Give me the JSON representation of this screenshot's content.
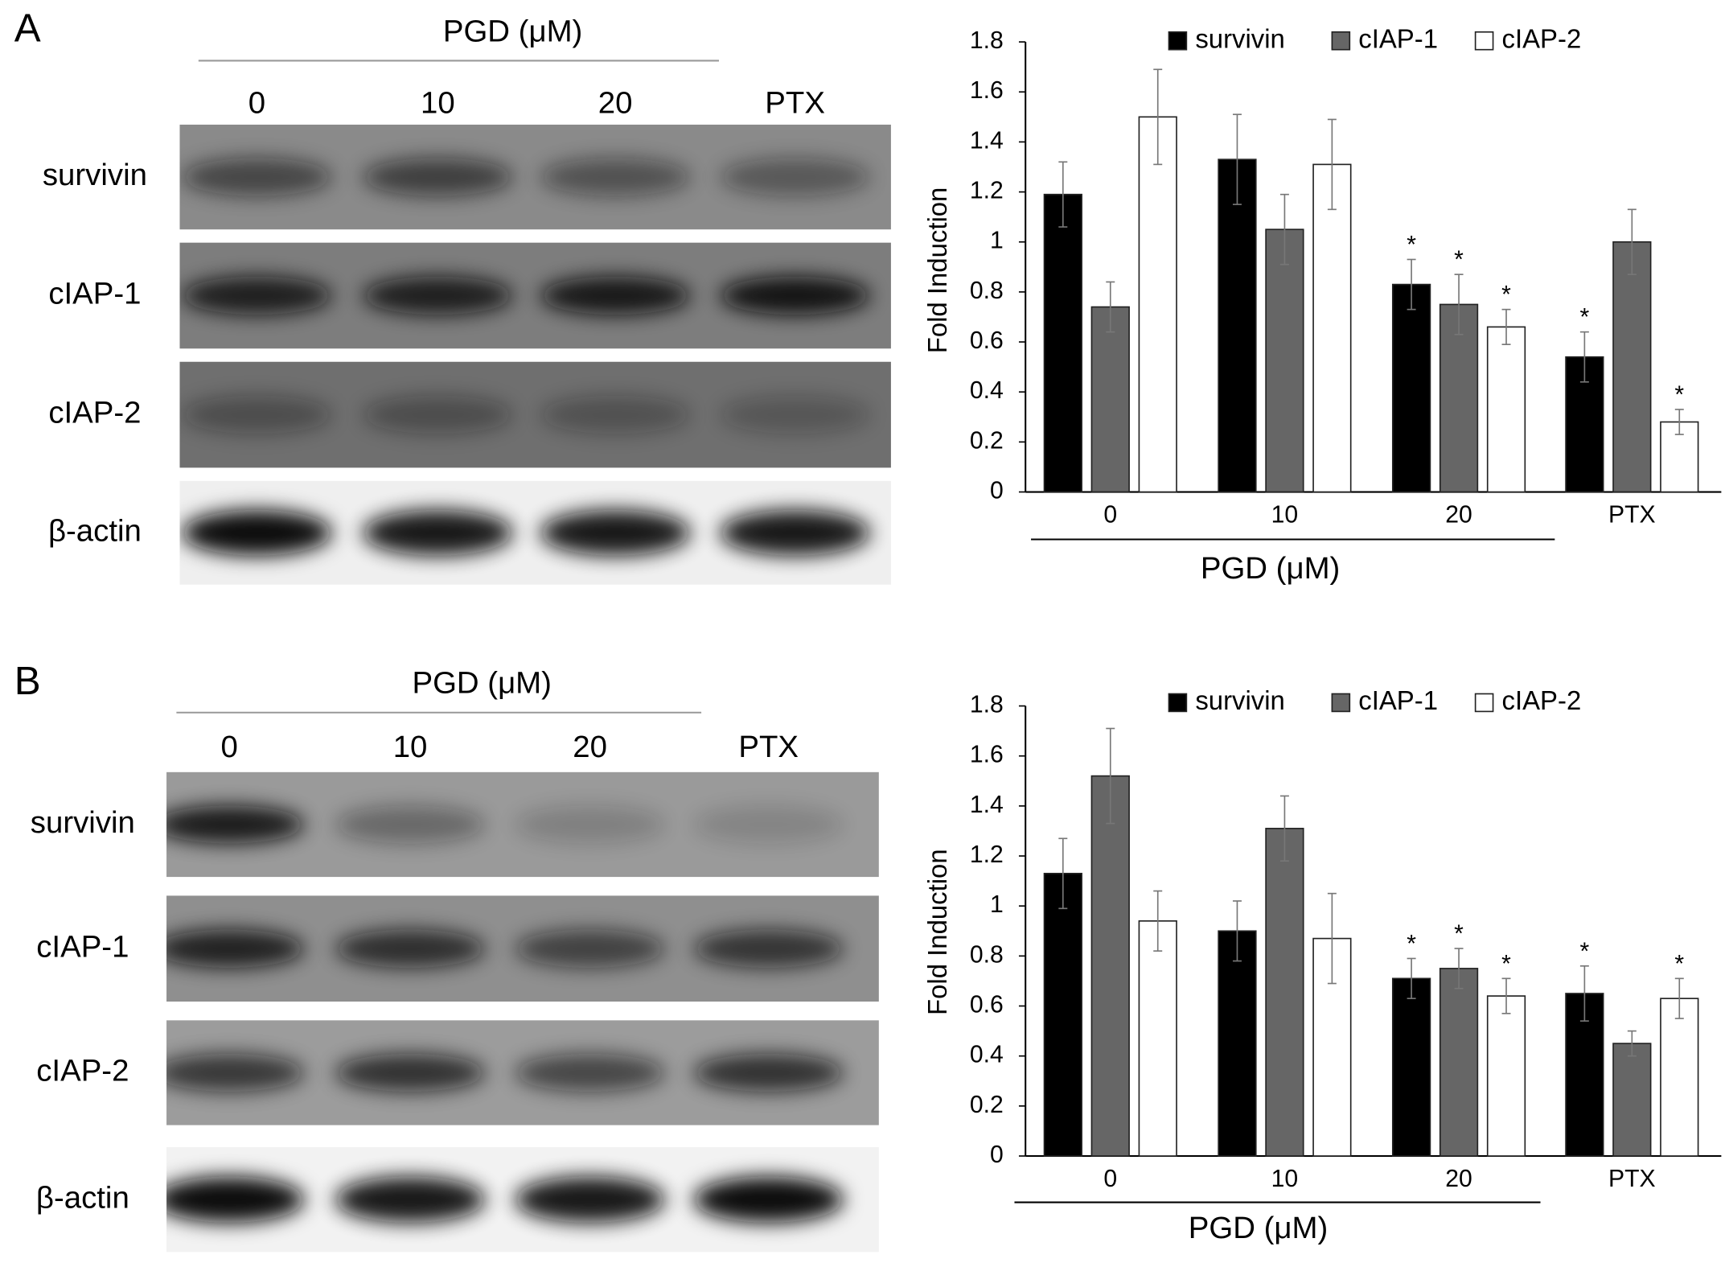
{
  "panel_labels": [
    "A",
    "B"
  ],
  "blots": [
    {
      "group_label": "PGD (μM)",
      "lanes": [
        "0",
        "10",
        "20",
        "PTX"
      ],
      "rows": [
        "survivin",
        "cIAP-1",
        "cIAP-2",
        "β-actin"
      ]
    },
    {
      "group_label": "PGD (μM)",
      "lanes": [
        "0",
        "10",
        "20",
        "PTX"
      ],
      "rows": [
        "survivin",
        "cIAP-1",
        "cIAP-2",
        "β-actin"
      ]
    }
  ],
  "chart_data": [
    {
      "type": "bar",
      "ylabel": "Fold Induction",
      "xlabel": "PGD (μM)",
      "significance_marker": "*",
      "categories": [
        "0",
        "10",
        "20",
        "PTX"
      ],
      "series": [
        {
          "name": "survivin",
          "color": "#000000",
          "values": [
            1.19,
            1.33,
            0.83,
            0.54
          ],
          "errors": [
            0.13,
            0.18,
            0.1,
            0.1
          ],
          "significant": [
            false,
            false,
            true,
            true
          ]
        },
        {
          "name": "cIAP-1",
          "color": "#666666",
          "values": [
            0.74,
            1.05,
            0.75,
            1.0
          ],
          "errors": [
            0.1,
            0.14,
            0.12,
            0.13
          ],
          "significant": [
            false,
            false,
            true,
            false
          ]
        },
        {
          "name": "cIAP-2",
          "color": "#ffffff",
          "values": [
            1.5,
            1.31,
            0.66,
            0.28
          ],
          "errors": [
            0.19,
            0.18,
            0.07,
            0.05
          ],
          "significant": [
            false,
            false,
            true,
            true
          ]
        }
      ],
      "ylim": [
        0,
        1.8
      ],
      "yticks": [
        0,
        0.2,
        0.4,
        0.6,
        0.8,
        1,
        1.2,
        1.4,
        1.6,
        1.8
      ],
      "legend": "top"
    },
    {
      "type": "bar",
      "ylabel": "Fold Induction",
      "xlabel": "PGD (μM)",
      "significance_marker": "*",
      "categories": [
        "0",
        "10",
        "20",
        "PTX"
      ],
      "series": [
        {
          "name": "survivin",
          "color": "#000000",
          "values": [
            1.13,
            0.9,
            0.71,
            0.65
          ],
          "errors": [
            0.14,
            0.12,
            0.08,
            0.11
          ],
          "significant": [
            false,
            false,
            true,
            true
          ]
        },
        {
          "name": "cIAP-1",
          "color": "#666666",
          "values": [
            1.52,
            1.31,
            0.75,
            0.45
          ],
          "errors": [
            0.19,
            0.13,
            0.08,
            0.05
          ],
          "significant": [
            false,
            false,
            true,
            false
          ]
        },
        {
          "name": "cIAP-2",
          "color": "#ffffff",
          "values": [
            0.94,
            0.87,
            0.64,
            0.63
          ],
          "errors": [
            0.12,
            0.18,
            0.07,
            0.08
          ],
          "significant": [
            false,
            false,
            true,
            true
          ]
        }
      ],
      "ylim": [
        0,
        1.8
      ],
      "yticks": [
        0,
        0.2,
        0.4,
        0.6,
        0.8,
        1,
        1.2,
        1.4,
        1.6,
        1.8
      ],
      "legend": "top"
    }
  ]
}
